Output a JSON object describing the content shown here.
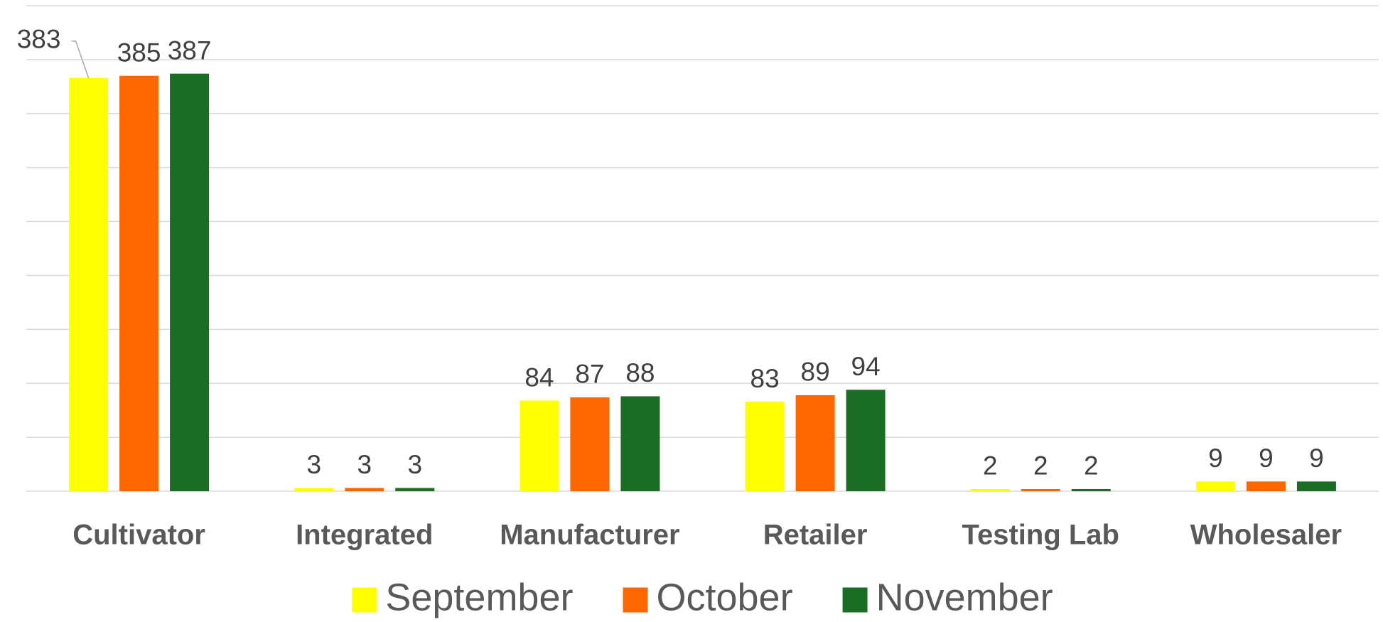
{
  "chart_data": {
    "type": "bar",
    "categories": [
      "Cultivator",
      "Integrated",
      "Manufacturer",
      "Retailer",
      "Testing Lab",
      "Wholesaler"
    ],
    "series": [
      {
        "name": "September",
        "color": "#ffff00",
        "values": [
          383,
          3,
          84,
          83,
          2,
          9
        ]
      },
      {
        "name": "October",
        "color": "#ff6600",
        "values": [
          385,
          3,
          87,
          89,
          2,
          9
        ]
      },
      {
        "name": "November",
        "color": "#1a6e24",
        "values": [
          387,
          3,
          88,
          94,
          2,
          9
        ]
      }
    ],
    "ylim": [
      0,
      450
    ],
    "yticks": [
      0,
      50,
      100,
      150,
      200,
      250,
      300,
      350,
      400,
      450
    ],
    "grid": true,
    "legend": "bottom"
  }
}
